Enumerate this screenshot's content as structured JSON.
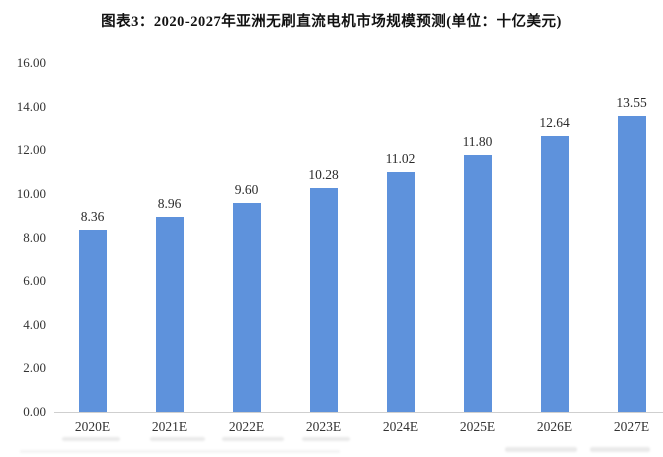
{
  "page": {
    "title": "图表3：2020-2027年亚洲无刷直流电机市场规模预测(单位：十亿美元)"
  },
  "chart_data": {
    "type": "bar",
    "title": "图表3：2020-2027年亚洲无刷直流电机市场规模预测(单位：十亿美元)",
    "categories": [
      "2020E",
      "2021E",
      "2022E",
      "2023E",
      "2024E",
      "2025E",
      "2026E",
      "2027E"
    ],
    "values": [
      8.36,
      8.96,
      9.6,
      10.28,
      11.02,
      11.8,
      12.64,
      13.55
    ],
    "data_labels": [
      "8.36",
      "8.96",
      "9.60",
      "10.28",
      "11.02",
      "11.80",
      "12.64",
      "13.55"
    ],
    "xlabel": "",
    "ylabel": "",
    "ylim": [
      0,
      16
    ],
    "yticks": [
      0,
      2,
      4,
      6,
      8,
      10,
      12,
      14,
      16
    ],
    "ytick_labels": [
      "0.00",
      "2.00",
      "4.00",
      "6.00",
      "8.00",
      "10.00",
      "12.00",
      "14.00",
      "16.00"
    ],
    "grid": false,
    "legend": "none",
    "bar_color": "#5E92DC",
    "axis_line_color": "#CFCFCF",
    "tick_label_color": "#333333",
    "title_color": "#111111"
  }
}
